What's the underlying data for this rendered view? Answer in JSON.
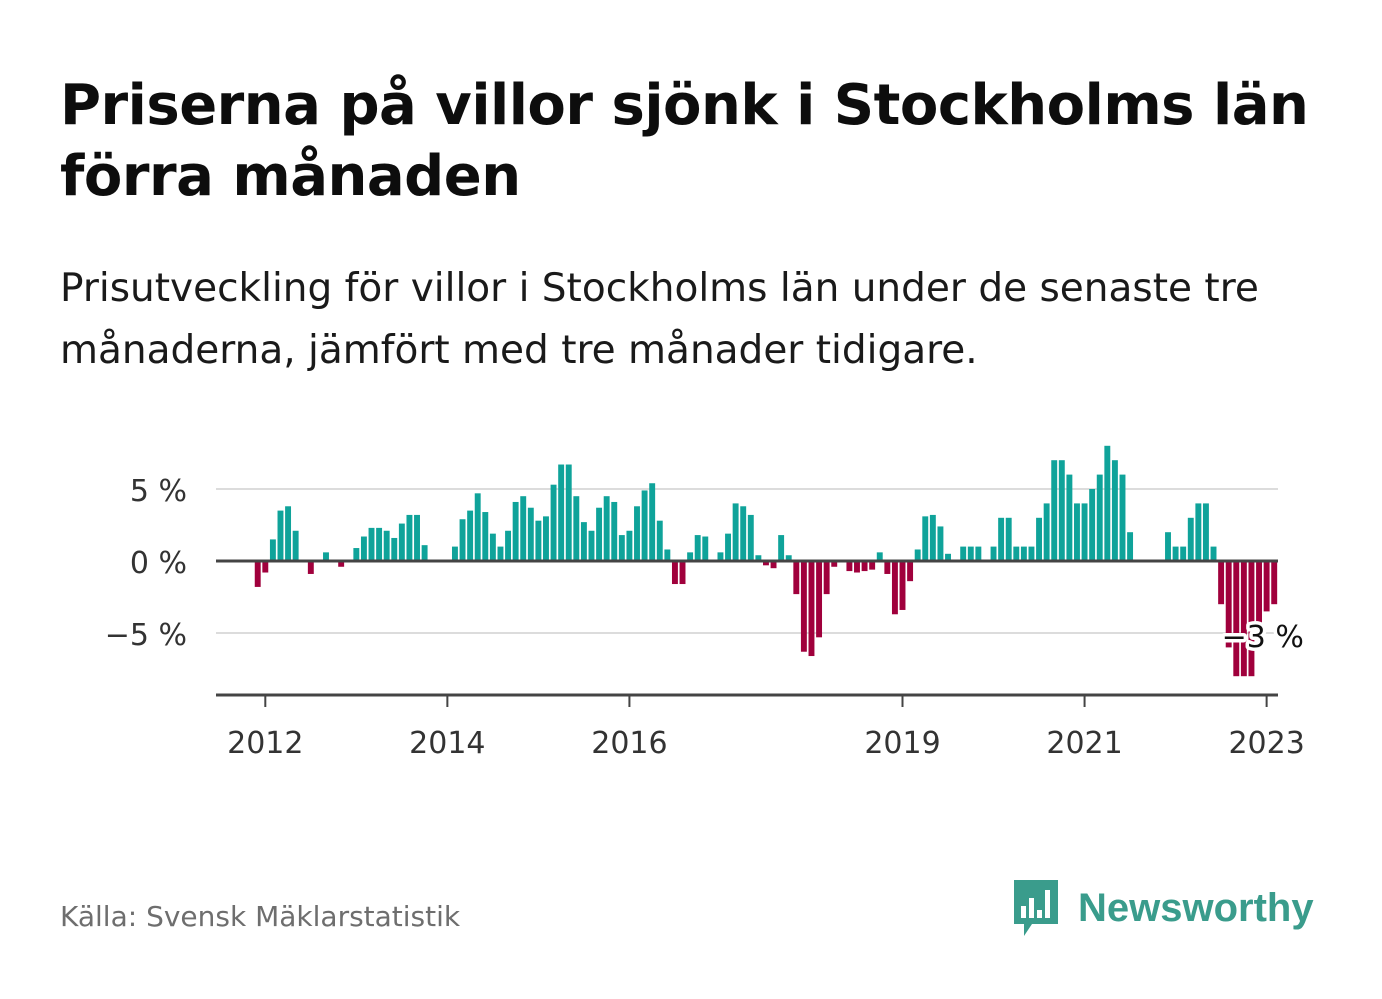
{
  "title": "Priserna på villor sjönk i Stockholms län förra månaden",
  "subtitle": "Prisutveckling för villor i Stockholms län under de senaste tre månaderna, jämfört med tre månader tidigare.",
  "source": "Källa: Svensk Mäklarstatistik",
  "brand": {
    "name": "Newsworthy",
    "icon": "newsworthy-logo-icon",
    "color": "#3a9c8c"
  },
  "chart_data": {
    "type": "bar",
    "ylim": [
      -9,
      9
    ],
    "yticks": [
      {
        "value": 5,
        "label": "5 %"
      },
      {
        "value": 0,
        "label": "0 %"
      },
      {
        "value": -5,
        "label": "−5 %"
      }
    ],
    "xticks": [
      {
        "index": 6,
        "label": "2012"
      },
      {
        "index": 30,
        "label": "2014"
      },
      {
        "index": 54,
        "label": "2016"
      },
      {
        "index": 90,
        "label": "2019"
      },
      {
        "index": 114,
        "label": "2021"
      },
      {
        "index": 138,
        "label": "2023"
      }
    ],
    "positive_color": "#0fa39a",
    "negative_color": "#a0003c",
    "grid": true,
    "annotation": {
      "index": 138,
      "label": "−3 %"
    },
    "values": [
      0,
      0,
      0,
      0,
      0,
      -1.8,
      -0.8,
      1.5,
      3.5,
      3.8,
      2.1,
      0,
      -0.9,
      0,
      0.6,
      0,
      -0.4,
      0,
      0.9,
      1.7,
      2.3,
      2.3,
      2.1,
      1.6,
      2.6,
      3.2,
      3.2,
      1.1,
      0,
      0,
      0,
      1.0,
      2.9,
      3.5,
      4.7,
      3.4,
      1.9,
      1.0,
      2.1,
      4.1,
      4.5,
      3.7,
      2.8,
      3.1,
      5.3,
      6.7,
      6.7,
      4.5,
      2.7,
      2.1,
      3.7,
      4.5,
      4.1,
      1.8,
      2.1,
      3.8,
      4.9,
      5.4,
      2.8,
      0.8,
      -1.6,
      -1.6,
      0.6,
      1.8,
      1.7,
      0,
      0.6,
      1.9,
      4.0,
      3.8,
      3.2,
      0.4,
      -0.3,
      -0.5,
      1.8,
      0.4,
      -2.3,
      -6.3,
      -6.6,
      -5.3,
      -2.3,
      -0.4,
      0,
      -0.7,
      -0.8,
      -0.7,
      -0.6,
      0.6,
      -0.9,
      -3.7,
      -3.4,
      -1.4,
      0.8,
      3.1,
      3.2,
      2.4,
      0.5,
      0,
      1.0,
      1.0,
      1.0,
      0,
      1.0,
      3.0,
      3.0,
      1.0,
      1.0,
      1.0,
      3.0,
      4.0,
      7.0,
      7.0,
      6.0,
      4.0,
      4.0,
      5.0,
      6.0,
      8.0,
      7.0,
      6.0,
      2.0,
      0,
      0,
      0,
      0,
      2.0,
      1.0,
      1.0,
      3.0,
      4.0,
      4.0,
      1.0,
      -3.0,
      -6.0,
      -8.0,
      -8.0,
      -8.0,
      -5.0,
      -3.5,
      -3.0
    ]
  }
}
